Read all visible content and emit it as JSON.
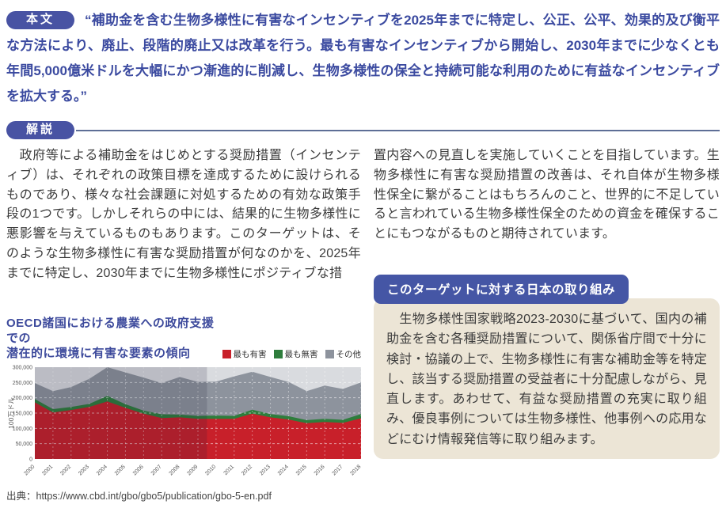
{
  "quote": {
    "badge": "本文",
    "text": "“補助金を含む生物多様性に有害なインセンティブを2025年までに特定し、公正、公平、効果的及び衡平な方法により、廃止、段階的廃止又は改革を行う。最も有害なインセンティブから開始し、2030年までに少なくとも年間5,000億米ドルを大幅にかつ漸進的に削減し、生物多様性の保全と持続可能な利用のために有益なインセンティブを拡大する。”"
  },
  "commentary": {
    "badge": "解説",
    "left_text": "　政府等による補助金をはじめとする奨励措置（インセンティブ）は、それぞれの政策目標を達成するために設けられるものであり、様々な社会課題に対処するための有効な政策手段の1つです。しかしそれらの中には、結果的に生物多様性に悪影響を与えているものもあります。このターゲットは、そのような生物多様性に有害な奨励措置が何なのかを、2025年までに特定し、2030年までに生物多様性にポジティブな措",
    "right_text": "置内容への見直しを実施していくことを目指しています。生物多様性に有害な奨励措置の改善は、それ自体が生物多様性保全に繋がることはもちろんのこと、世界的に不足していると言われている生物多様性保全のための資金を確保することにもつながるものと期待されています。"
  },
  "japan_box": {
    "title": "このターゲットに対する日本の取り組み",
    "body": "　生物多様性国家戦略2023-2030に基づいて、国内の補助金を含む各種奨励措置について、関係省庁間で十分に検討・協議の上で、生物多様性に有害な補助金等を特定し、該当する奨励措置の受益者に十分配慮しながら、見直します。あわせて、有益な奨励措置の充実に取り組み、優良事例については生物多様性、他事例への応用などにむけ情報発信等に取り組みます。"
  },
  "chart": {
    "title_line1": "OECD諸国における農業への政府支援での",
    "title_line2": "潜在的に環境に有害な要素の傾向",
    "source": "出典：https://www.cbd.int/gbo/gbo5/publication/gbo-5-en.pdf"
  },
  "chart_data": {
    "type": "area",
    "stacked": true,
    "title": "OECD諸国における農業への政府支援での潜在的に環境に有害な要素の傾向",
    "xlabel": "",
    "ylabel": "100万ドル",
    "ylim": [
      0,
      300000
    ],
    "ytick_interval": 50000,
    "grid": true,
    "legend_position": "top-right",
    "bg_color": "#d9dbdf",
    "dim_overlay_end_year": 2009.5,
    "x": [
      2000,
      2001,
      2002,
      2003,
      2004,
      2005,
      2006,
      2007,
      2008,
      2009,
      2010,
      2011,
      2012,
      2013,
      2014,
      2015,
      2016,
      2017,
      2018
    ],
    "series": [
      {
        "name": "最も有害",
        "color": "#c8202a",
        "values": [
          185000,
          152000,
          160000,
          170000,
          188000,
          167000,
          148000,
          134000,
          136000,
          131000,
          131000,
          131000,
          148000,
          136000,
          129000,
          117000,
          121000,
          118000,
          133000
        ]
      },
      {
        "name": "最も無害",
        "color": "#2e7d3c",
        "values": [
          11000,
          11000,
          10000,
          10000,
          18000,
          12000,
          10000,
          12000,
          9000,
          10000,
          11000,
          10000,
          13000,
          11000,
          11000,
          10000,
          10000,
          10000,
          14000
        ]
      },
      {
        "name": "その他",
        "color": "#8d939d",
        "values": [
          52000,
          59000,
          65000,
          82000,
          94000,
          104000,
          108000,
          102000,
          123000,
          111000,
          111000,
          129000,
          124000,
          121000,
          112000,
          95000,
          109000,
          101000,
          103000
        ]
      }
    ],
    "totals": [
      248000,
      222000,
      235000,
      262000,
      300000,
      283000,
      266000,
      248000,
      268000,
      252000,
      253000,
      270000,
      285000,
      268000,
      252000,
      222000,
      240000,
      229000,
      250000
    ]
  },
  "colors": {
    "primary_blue": "#3b4aa0",
    "pill_blue": "#4853a3",
    "japan_title_blue": "#4556a5",
    "beige": "#ece5d6",
    "rule_blue_gray": "#5e6e96",
    "text_dark": "#3c3c3c",
    "harmful_red": "#c8202a",
    "harmless_green": "#2e7d3c",
    "other_gray": "#8d939d",
    "plot_bg_gray": "#d9dbdf"
  }
}
